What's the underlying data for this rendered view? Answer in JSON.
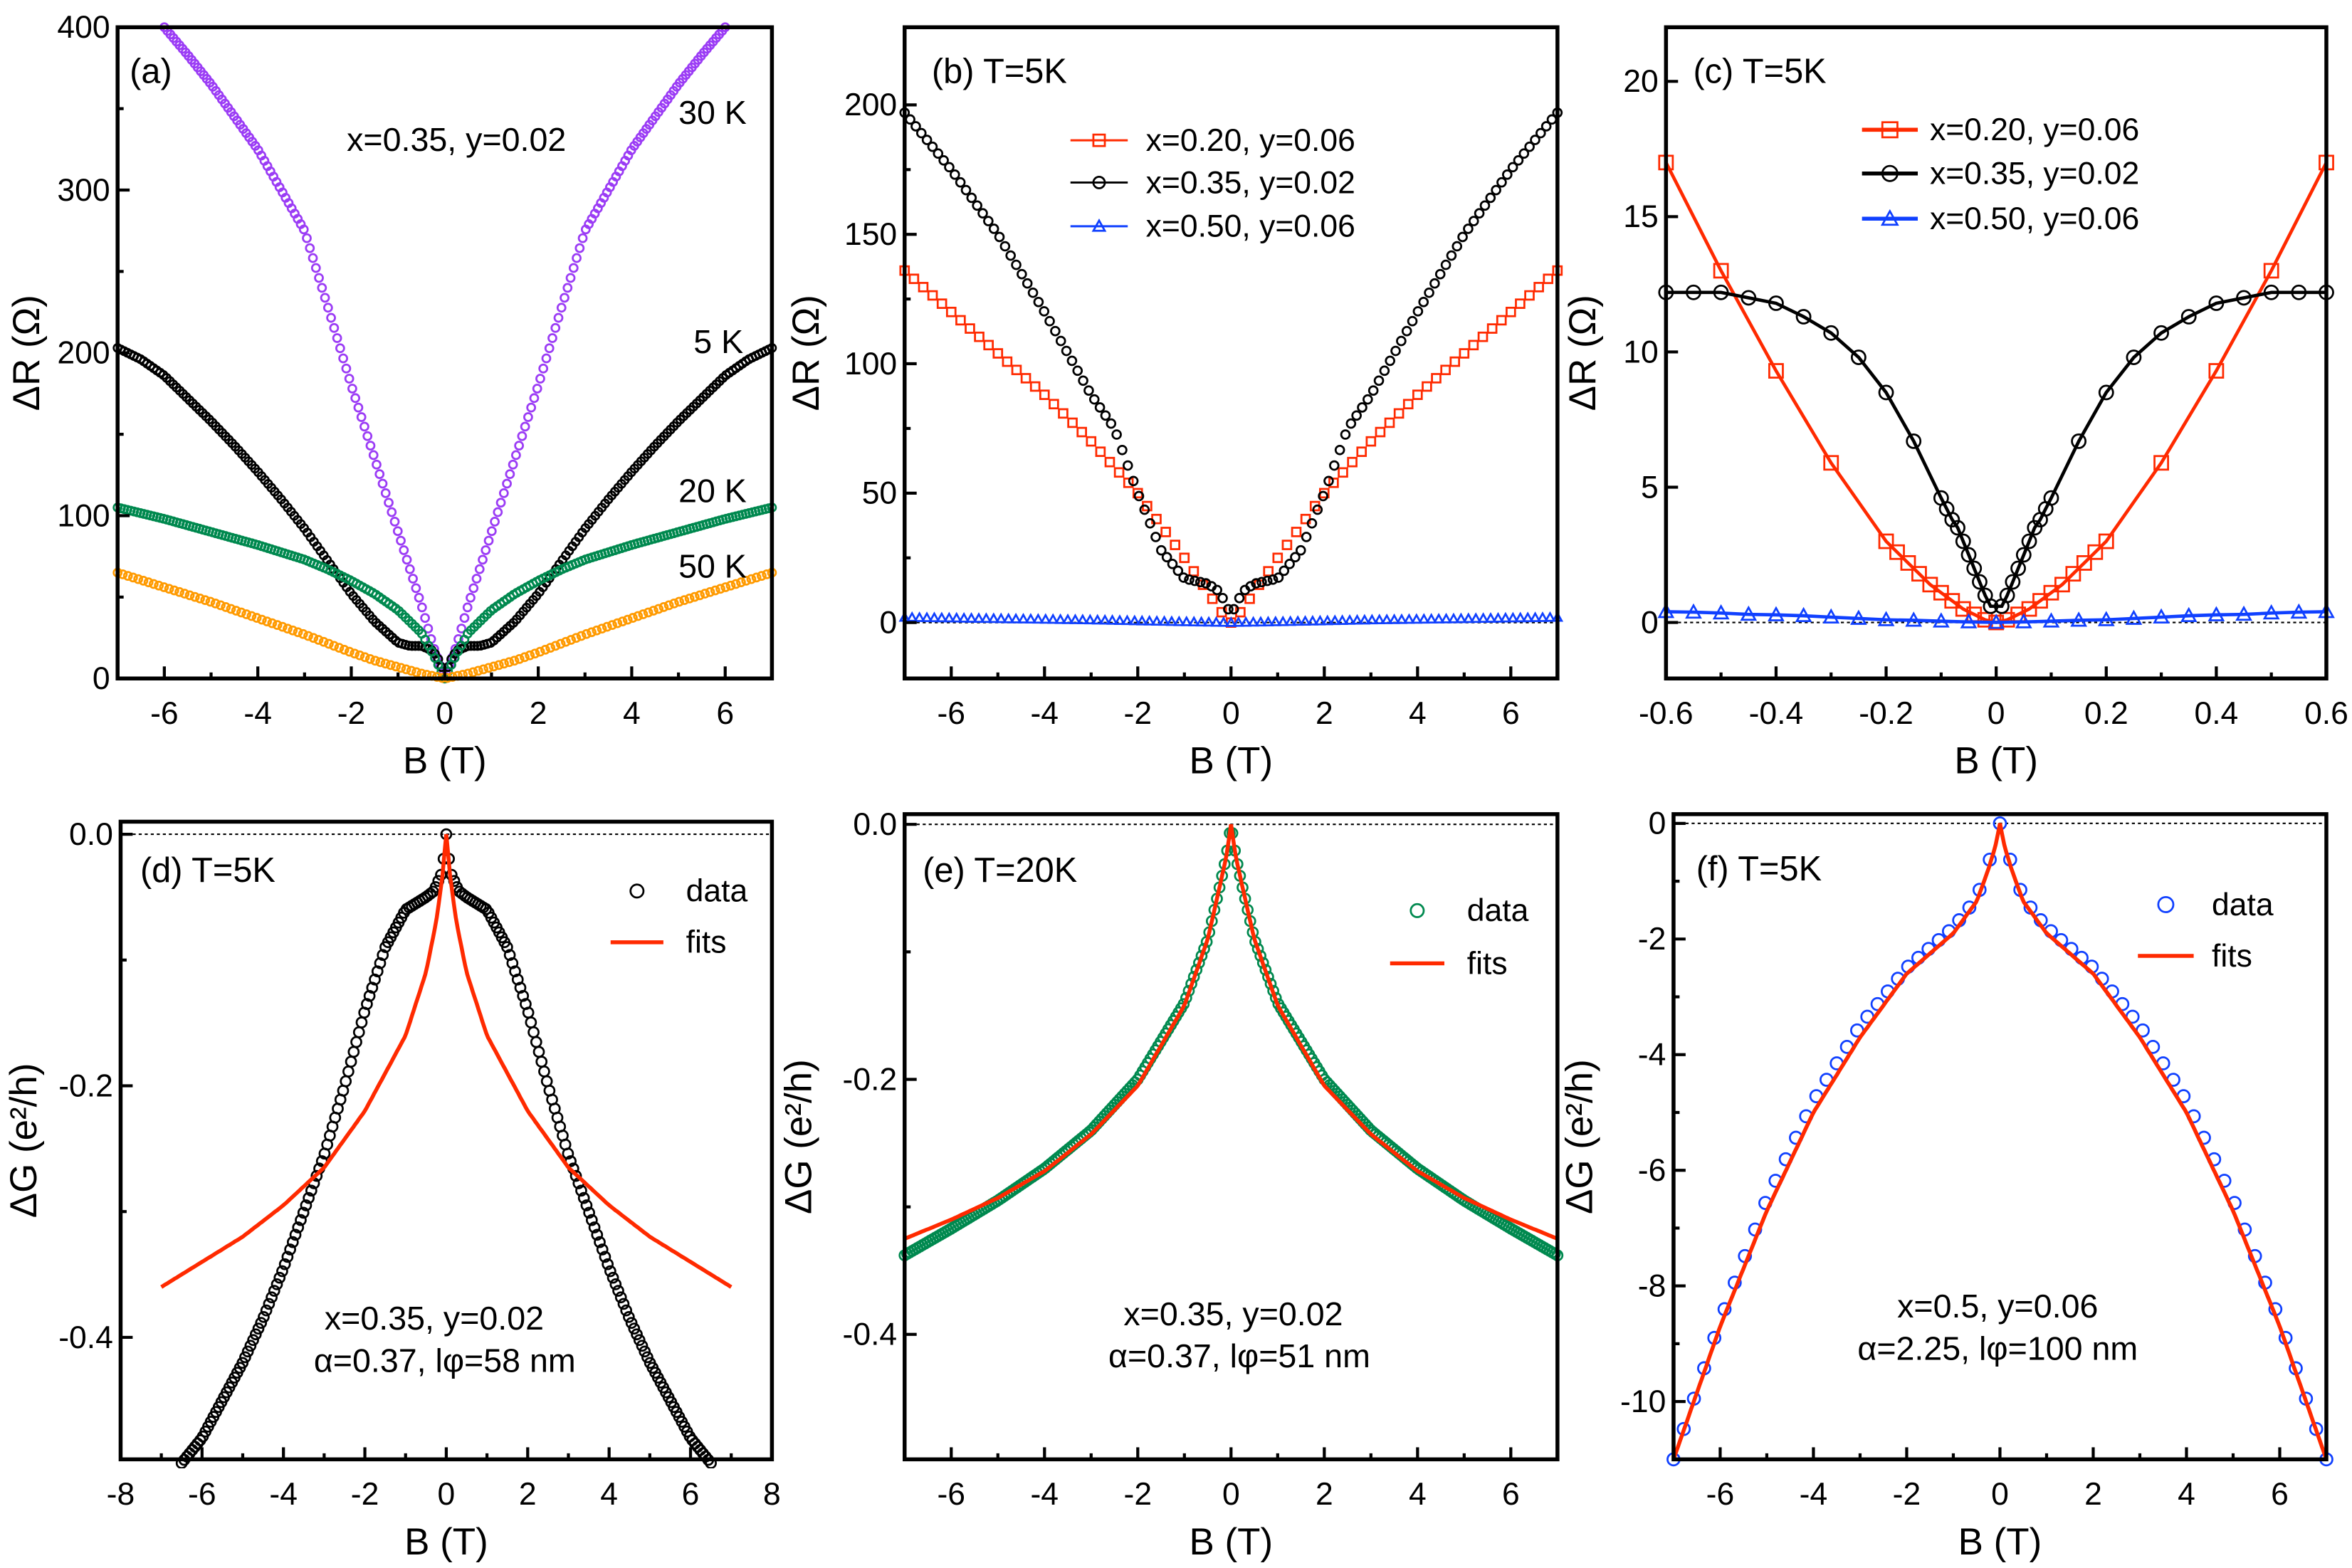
{
  "chart_data": [
    {
      "id": "a",
      "type": "scatter",
      "panel_label": "(a)",
      "xlabel": "B (T)",
      "ylabel": "ΔR (Ω)",
      "xlim": [
        -7,
        7
      ],
      "ylim": [
        0,
        400
      ],
      "xticks": [
        {
          "v": -6,
          "label": "-6"
        },
        {
          "v": -4,
          "label": "-4"
        },
        {
          "v": -2,
          "label": "-2"
        },
        {
          "v": 0,
          "label": "0"
        },
        {
          "v": 2,
          "label": "2"
        },
        {
          "v": 4,
          "label": "4"
        },
        {
          "v": 6,
          "label": "6"
        }
      ],
      "yticks": [
        {
          "v": 0,
          "label": "0"
        },
        {
          "v": 100,
          "label": "100"
        },
        {
          "v": 200,
          "label": "200"
        },
        {
          "v": 300,
          "label": "300"
        },
        {
          "v": 400,
          "label": "400"
        }
      ],
      "xminor": [
        -7,
        -5,
        -3,
        -1,
        1,
        3,
        5,
        7
      ],
      "yminor": [
        50,
        150,
        250,
        350
      ],
      "annotations": [
        "x=0.35, y=0.02",
        "30 K",
        "5 K",
        "20 K",
        "50 K"
      ],
      "zero_line": false,
      "series": [
        {
          "name": "30 K",
          "color": "#9b3cf5",
          "marker": "circle",
          "symmetric": true,
          "x": [
            0,
            0.25,
            0.5,
            1,
            1.5,
            2,
            2.5,
            3,
            3.5,
            4,
            4.5,
            5,
            5.5,
            6
          ],
          "y": [
            0,
            20,
            45,
            90,
            135,
            180,
            228,
            275,
            300,
            325,
            345,
            365,
            383,
            400
          ]
        },
        {
          "name": "5 K",
          "color": "#000000",
          "marker": "circle",
          "symmetric": true,
          "x": [
            0,
            0.1,
            0.25,
            0.5,
            0.75,
            1,
            1.5,
            2,
            2.5,
            3,
            3.5,
            4,
            4.5,
            5,
            5.5,
            6,
            6.5,
            7
          ],
          "y": [
            0,
            10,
            17,
            20,
            20,
            22,
            35,
            52,
            72,
            92,
            110,
            127,
            143,
            158,
            172,
            186,
            196,
            203
          ]
        },
        {
          "name": "20 K",
          "color": "#00894f",
          "marker": "circle",
          "symmetric": true,
          "x": [
            0,
            0.25,
            0.5,
            1,
            1.5,
            2,
            2.5,
            3,
            4,
            5,
            6,
            7
          ],
          "y": [
            0,
            15,
            28,
            42,
            52,
            60,
            67,
            73,
            82,
            90,
            98,
            105
          ]
        },
        {
          "name": "50 K",
          "color": "#ff9a00",
          "marker": "circle",
          "symmetric": true,
          "x": [
            0,
            0.5,
            1,
            1.5,
            2,
            3,
            4,
            5,
            6,
            7
          ],
          "y": [
            0,
            3,
            7,
            11,
            16,
            27,
            37,
            47,
            56,
            65
          ]
        }
      ],
      "legend": []
    },
    {
      "id": "b",
      "type": "scatter",
      "panel_label": "(b) T=5K",
      "xlabel": "B (T)",
      "ylabel": "ΔR (Ω)",
      "xlim": [
        -7,
        7
      ],
      "ylim": [
        -21.6,
        230
      ],
      "xticks": [
        {
          "v": -6,
          "label": "-6"
        },
        {
          "v": -4,
          "label": "-4"
        },
        {
          "v": -2,
          "label": "-2"
        },
        {
          "v": 0,
          "label": "0"
        },
        {
          "v": 2,
          "label": "2"
        },
        {
          "v": 4,
          "label": "4"
        },
        {
          "v": 6,
          "label": "6"
        }
      ],
      "yticks": [
        {
          "v": 0,
          "label": "0"
        },
        {
          "v": 50,
          "label": "50"
        },
        {
          "v": 100,
          "label": "100"
        },
        {
          "v": 150,
          "label": "150"
        },
        {
          "v": 200,
          "label": "200"
        }
      ],
      "xminor": [
        -7,
        -5,
        -3,
        -1,
        1,
        3,
        5,
        7
      ],
      "yminor": [
        25,
        75,
        125,
        175
      ],
      "annotations": [],
      "zero_line": true,
      "series": [
        {
          "name": "x=0.20, y=0.06",
          "color": "#ff2a00",
          "marker": "square",
          "symmetric": true,
          "x": [
            0,
            0.25,
            0.5,
            1,
            2,
            3,
            4,
            5,
            6,
            7
          ],
          "y": [
            0,
            5,
            12,
            25,
            50,
            70,
            88,
            104,
            120,
            136
          ]
        },
        {
          "name": "x=0.35, y=0.02",
          "color": "#000000",
          "marker": "circle",
          "symmetric": true,
          "x": [
            0,
            0.25,
            0.5,
            1,
            1.5,
            2,
            2.5,
            3,
            4,
            5,
            6,
            7
          ],
          "y": [
            3,
            12,
            15,
            17,
            28,
            50,
            75,
            88,
            120,
            150,
            175,
            197
          ]
        },
        {
          "name": "x=0.50, y=0.06",
          "color": "#1040ff",
          "marker": "triangle",
          "symmetric": true,
          "x": [
            0,
            1,
            3,
            5,
            7
          ],
          "y": [
            0,
            0.3,
            1,
            1.5,
            2
          ]
        }
      ],
      "legend": [
        "x=0.20, y=0.06",
        "x=0.35, y=0.02",
        "x=0.50, y=0.06"
      ]
    },
    {
      "id": "c",
      "type": "line",
      "panel_label": "(c) T=5K",
      "xlabel": "B (T)",
      "ylabel": "ΔR (Ω)",
      "xlim": [
        -0.6,
        0.6
      ],
      "ylim": [
        -2.07,
        22
      ],
      "xticks": [
        {
          "v": -0.6,
          "label": "-0.6"
        },
        {
          "v": -0.4,
          "label": "-0.4"
        },
        {
          "v": -0.2,
          "label": "-0.2"
        },
        {
          "v": 0,
          "label": "0"
        },
        {
          "v": 0.2,
          "label": "0.2"
        },
        {
          "v": 0.4,
          "label": "0.4"
        },
        {
          "v": 0.6,
          "label": "0.6"
        }
      ],
      "yticks": [
        {
          "v": 0,
          "label": "0"
        },
        {
          "v": 5,
          "label": "5"
        },
        {
          "v": 10,
          "label": "10"
        },
        {
          "v": 15,
          "label": "15"
        },
        {
          "v": 20,
          "label": "20"
        }
      ],
      "xminor": [
        -0.5,
        -0.3,
        -0.1,
        0.1,
        0.3,
        0.5
      ],
      "yminor": [],
      "annotations": [],
      "zero_line": true,
      "series": [
        {
          "name": "x=0.20, y=0.06",
          "color": "#ff2a00",
          "marker": "square",
          "symmetric": true,
          "x": [
            0,
            0.02,
            0.04,
            0.06,
            0.08,
            0.1,
            0.12,
            0.14,
            0.16,
            0.18,
            0.2,
            0.3,
            0.4,
            0.5,
            0.6
          ],
          "y": [
            0,
            0.1,
            0.3,
            0.5,
            0.8,
            1.1,
            1.4,
            1.8,
            2.2,
            2.6,
            3,
            5.9,
            9.3,
            13,
            17
          ]
        },
        {
          "name": "x=0.35, y=0.02",
          "color": "#000000",
          "marker": "circle",
          "symmetric": true,
          "x": [
            0.01,
            0.02,
            0.03,
            0.04,
            0.05,
            0.06,
            0.07,
            0.08,
            0.09,
            0.1,
            0.15,
            0.2,
            0.25,
            0.3,
            0.35,
            0.4,
            0.45,
            0.5,
            0.55,
            0.6
          ],
          "y": [
            0.6,
            1,
            1.5,
            2,
            2.5,
            3,
            3.5,
            3.8,
            4.2,
            4.6,
            6.7,
            8.5,
            9.8,
            10.7,
            11.3,
            11.8,
            12,
            12.2,
            12.2,
            12.2
          ]
        },
        {
          "name": "x=0.50, y=0.06",
          "color": "#1040ff",
          "marker": "triangle",
          "symmetric": true,
          "x": [
            0,
            0.05,
            0.1,
            0.15,
            0.2,
            0.25,
            0.3,
            0.35,
            0.4,
            0.45,
            0.5,
            0.55,
            0.6
          ],
          "y": [
            0,
            0.02,
            0.05,
            0.08,
            0.1,
            0.15,
            0.2,
            0.25,
            0.28,
            0.3,
            0.35,
            0.38,
            0.4
          ]
        }
      ],
      "legend": [
        "x=0.20, y=0.06",
        "x=0.35, y=0.02",
        "x=0.50, y=0.06"
      ]
    },
    {
      "id": "d",
      "type": "scatter",
      "panel_label": "(d) T=5K",
      "xlabel": "B (T)",
      "ylabel": "ΔG (e²/h)",
      "xlim": [
        -8,
        8
      ],
      "ylim": [
        -0.497,
        0.01
      ],
      "xticks": [
        {
          "v": -8,
          "label": "-8"
        },
        {
          "v": -6,
          "label": "-6"
        },
        {
          "v": -4,
          "label": "-4"
        },
        {
          "v": -2,
          "label": "-2"
        },
        {
          "v": 0,
          "label": "0"
        },
        {
          "v": 2,
          "label": "2"
        },
        {
          "v": 4,
          "label": "4"
        },
        {
          "v": 6,
          "label": "6"
        },
        {
          "v": 8,
          "label": "8"
        }
      ],
      "yticks": [
        {
          "v": 0,
          "label": "0.0"
        },
        {
          "v": -0.2,
          "label": "-0.2"
        },
        {
          "v": -0.4,
          "label": "-0.4"
        }
      ],
      "xminor": [
        -7,
        -5,
        -3,
        -1,
        1,
        3,
        5,
        7
      ],
      "yminor": [
        -0.1,
        -0.3
      ],
      "annotations": [
        "x=0.35, y=0.02",
        "α=0.37, lφ=58 nm"
      ],
      "zero_line": true,
      "series": [
        {
          "name": "data",
          "color": "#000000",
          "marker": "circle",
          "symmetric": true,
          "x": [
            0,
            0.1,
            0.3,
            0.5,
            1,
            1.5,
            2,
            2.5,
            3,
            3.5,
            4,
            4.5,
            5,
            5.5,
            6,
            6.5
          ],
          "y": [
            0,
            -0.03,
            -0.045,
            -0.05,
            -0.06,
            -0.09,
            -0.14,
            -0.2,
            -0.255,
            -0.3,
            -0.345,
            -0.385,
            -0.42,
            -0.45,
            -0.48,
            -0.5
          ]
        },
        {
          "name": "fits",
          "color": "#ff2a00",
          "marker": "line",
          "symmetric": true,
          "x": [
            0,
            0.1,
            0.25,
            0.5,
            1,
            2,
            3,
            4,
            5,
            6,
            7
          ],
          "y": [
            0,
            -0.035,
            -0.07,
            -0.11,
            -0.16,
            -0.22,
            -0.265,
            -0.295,
            -0.32,
            -0.34,
            -0.36
          ]
        }
      ],
      "legend": [
        "data",
        "fits"
      ]
    },
    {
      "id": "e",
      "type": "scatter",
      "panel_label": "(e) T=20K",
      "xlabel": "B (T)",
      "ylabel": "ΔG (e²/h)",
      "xlim": [
        -7,
        7
      ],
      "ylim": [
        -0.498,
        0.008
      ],
      "xticks": [
        {
          "v": -6,
          "label": "-6"
        },
        {
          "v": -4,
          "label": "-4"
        },
        {
          "v": -2,
          "label": "-2"
        },
        {
          "v": 0,
          "label": "0"
        },
        {
          "v": 2,
          "label": "2"
        },
        {
          "v": 4,
          "label": "4"
        },
        {
          "v": 6,
          "label": "6"
        }
      ],
      "yticks": [
        {
          "v": 0,
          "label": "0.0"
        },
        {
          "v": -0.2,
          "label": "-0.2"
        },
        {
          "v": -0.4,
          "label": "-0.4"
        }
      ],
      "xminor": [
        -7,
        -5,
        -3,
        -1,
        1,
        3,
        5,
        7
      ],
      "yminor": [
        -0.1,
        -0.3
      ],
      "annotations": [
        "x=0.35, y=0.02",
        "α=0.37, lφ=51 nm"
      ],
      "zero_line": true,
      "series": [
        {
          "name": "data",
          "color": "#00894f",
          "marker": "circle",
          "symmetric": true,
          "x": [
            0,
            0.1,
            0.25,
            0.5,
            1,
            2,
            3,
            4,
            5,
            6,
            7
          ],
          "y": [
            0,
            -0.025,
            -0.05,
            -0.09,
            -0.14,
            -0.2,
            -0.24,
            -0.27,
            -0.295,
            -0.317,
            -0.338
          ]
        },
        {
          "name": "fits",
          "color": "#ff2a00",
          "marker": "line",
          "symmetric": true,
          "x": [
            0,
            0.1,
            0.25,
            0.5,
            1,
            2,
            3,
            4,
            5,
            6,
            7
          ],
          "y": [
            0,
            -0.025,
            -0.05,
            -0.09,
            -0.142,
            -0.205,
            -0.243,
            -0.272,
            -0.293,
            -0.31,
            -0.325
          ]
        }
      ],
      "legend": [
        "data",
        "fits"
      ]
    },
    {
      "id": "f",
      "type": "scatter",
      "panel_label": "(f) T=5K",
      "xlabel": "B (T)",
      "ylabel": "ΔG (e²/h)",
      "xlim": [
        -7,
        7
      ],
      "ylim": [
        -11,
        0.16
      ],
      "xticks": [
        {
          "v": -6,
          "label": "-6"
        },
        {
          "v": -4,
          "label": "-4"
        },
        {
          "v": -2,
          "label": "-2"
        },
        {
          "v": 0,
          "label": "0"
        },
        {
          "v": 2,
          "label": "2"
        },
        {
          "v": 4,
          "label": "4"
        },
        {
          "v": 6,
          "label": "6"
        }
      ],
      "yticks": [
        {
          "v": 0,
          "label": "0"
        },
        {
          "v": -2,
          "label": "-2"
        },
        {
          "v": -4,
          "label": "-4"
        },
        {
          "v": -6,
          "label": "-6"
        },
        {
          "v": -8,
          "label": "-8"
        },
        {
          "v": -10,
          "label": "-10"
        }
      ],
      "xminor": [
        -7,
        -5,
        -3,
        -1,
        1,
        3,
        5,
        7
      ],
      "yminor": [
        -1,
        -3,
        -5,
        -7,
        -9
      ],
      "annotations": [
        "x=0.5, y=0.06",
        "α=2.25, lφ=100 nm"
      ],
      "zero_line": true,
      "series": [
        {
          "name": "data",
          "color": "#1040ff",
          "marker": "circle",
          "symmetric": true,
          "x": [
            0,
            0.1,
            0.25,
            0.5,
            1,
            2,
            3,
            4,
            5,
            6,
            7
          ],
          "y": [
            0,
            -0.35,
            -0.7,
            -1.3,
            -1.8,
            -2.5,
            -3.5,
            -4.8,
            -6.5,
            -8.6,
            -11
          ]
        },
        {
          "name": "fits",
          "color": "#ff2a00",
          "marker": "line",
          "symmetric": true,
          "x": [
            0,
            0.1,
            0.25,
            0.5,
            1,
            2,
            3,
            4,
            5,
            6,
            7
          ],
          "y": [
            0,
            -0.4,
            -0.8,
            -1.35,
            -1.9,
            -2.6,
            -3.7,
            -5.0,
            -6.7,
            -8.7,
            -11
          ]
        }
      ],
      "legend": [
        "data",
        "fits"
      ]
    }
  ]
}
